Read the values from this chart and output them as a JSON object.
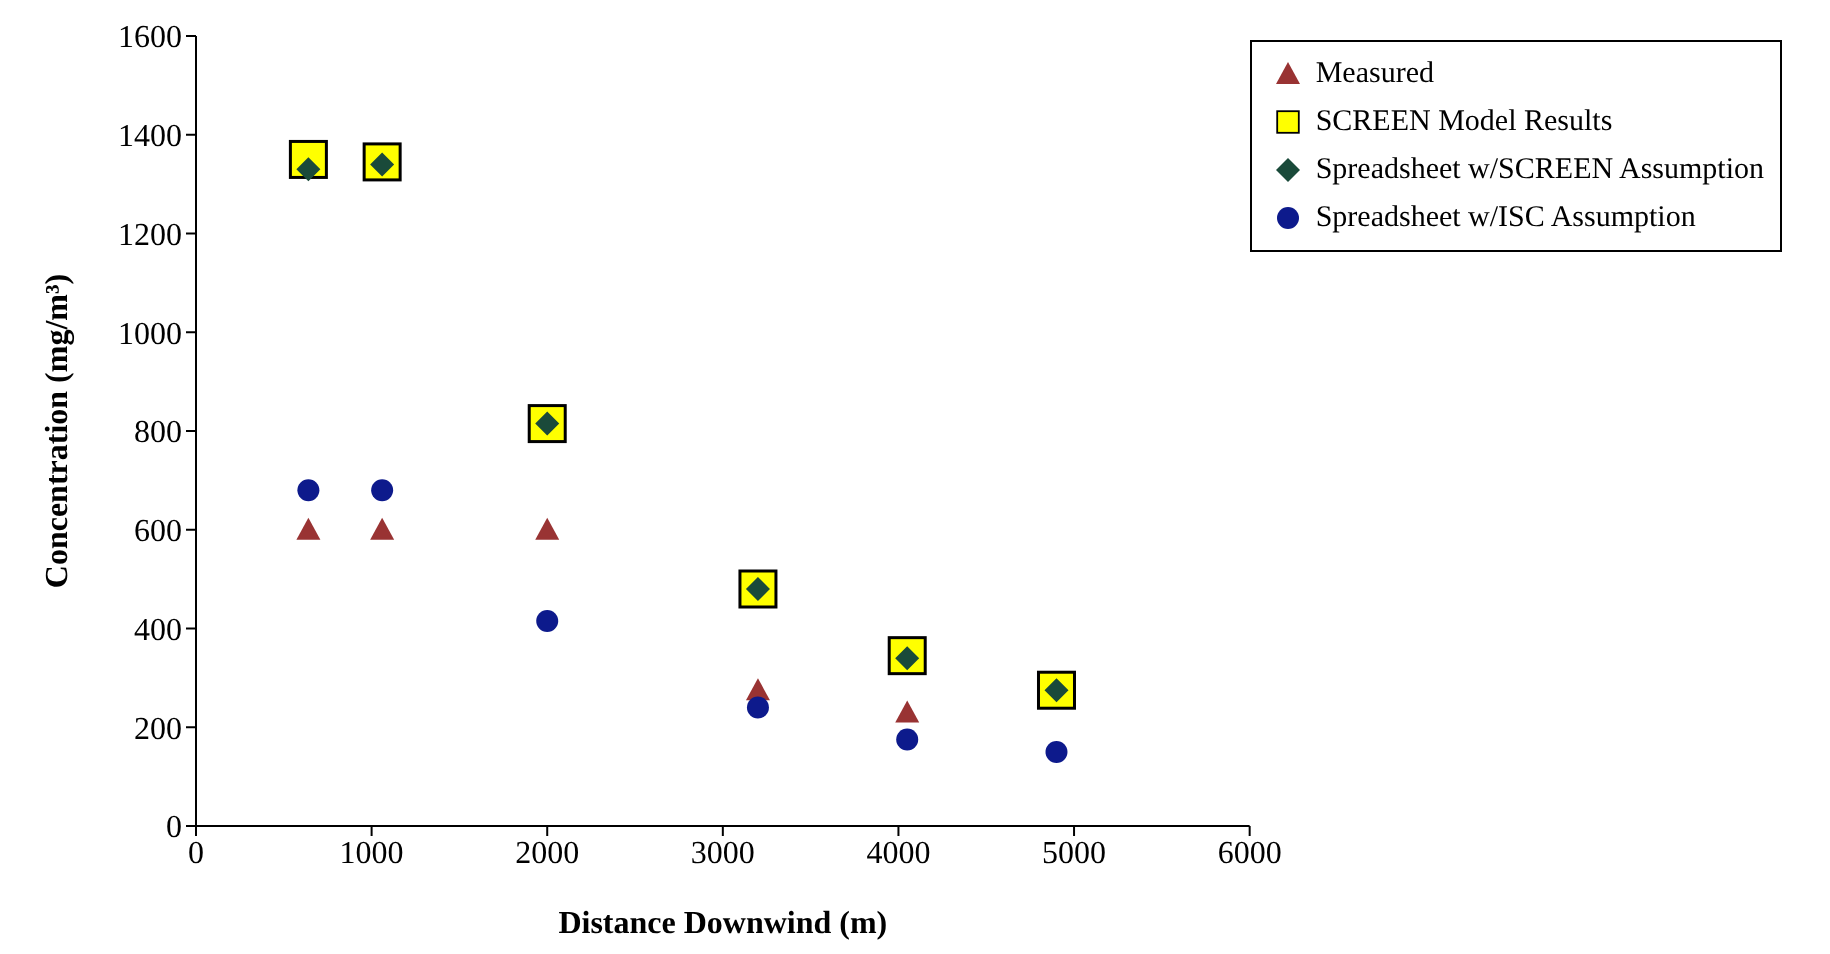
{
  "chart_data": {
    "type": "scatter",
    "xlabel": "Distance Downwind (m)",
    "ylabel": "Concentration (mg/m³)",
    "x": [
      640,
      1060,
      2000,
      3200,
      4050,
      4900
    ],
    "series": [
      {
        "name": "Measured",
        "color": "#993333",
        "marker": "triangle",
        "values": [
          600,
          600,
          600,
          275,
          230,
          null
        ]
      },
      {
        "name": "SCREEN Model Results",
        "color": "#ffff00",
        "marker": "square",
        "values": [
          1350,
          1345,
          815,
          480,
          345,
          275
        ]
      },
      {
        "name": "Spreadsheet w/SCREEN Assumption",
        "color": "#1a4a3a",
        "marker": "diamond",
        "values": [
          1330,
          1340,
          815,
          480,
          340,
          275
        ]
      },
      {
        "name": "Spreadsheet w/ISC Assumption",
        "color": "#0d1a8c",
        "marker": "circle",
        "values": [
          680,
          680,
          415,
          240,
          175,
          150
        ]
      }
    ],
    "xlim": [
      0,
      6000
    ],
    "xticks": [
      0,
      1000,
      2000,
      3000,
      4000,
      5000,
      6000
    ],
    "ylim": [
      0,
      1600
    ],
    "yticks": [
      0,
      200,
      400,
      600,
      800,
      1000,
      1200,
      1400,
      1600
    ],
    "grid": false,
    "legend": "top right"
  }
}
